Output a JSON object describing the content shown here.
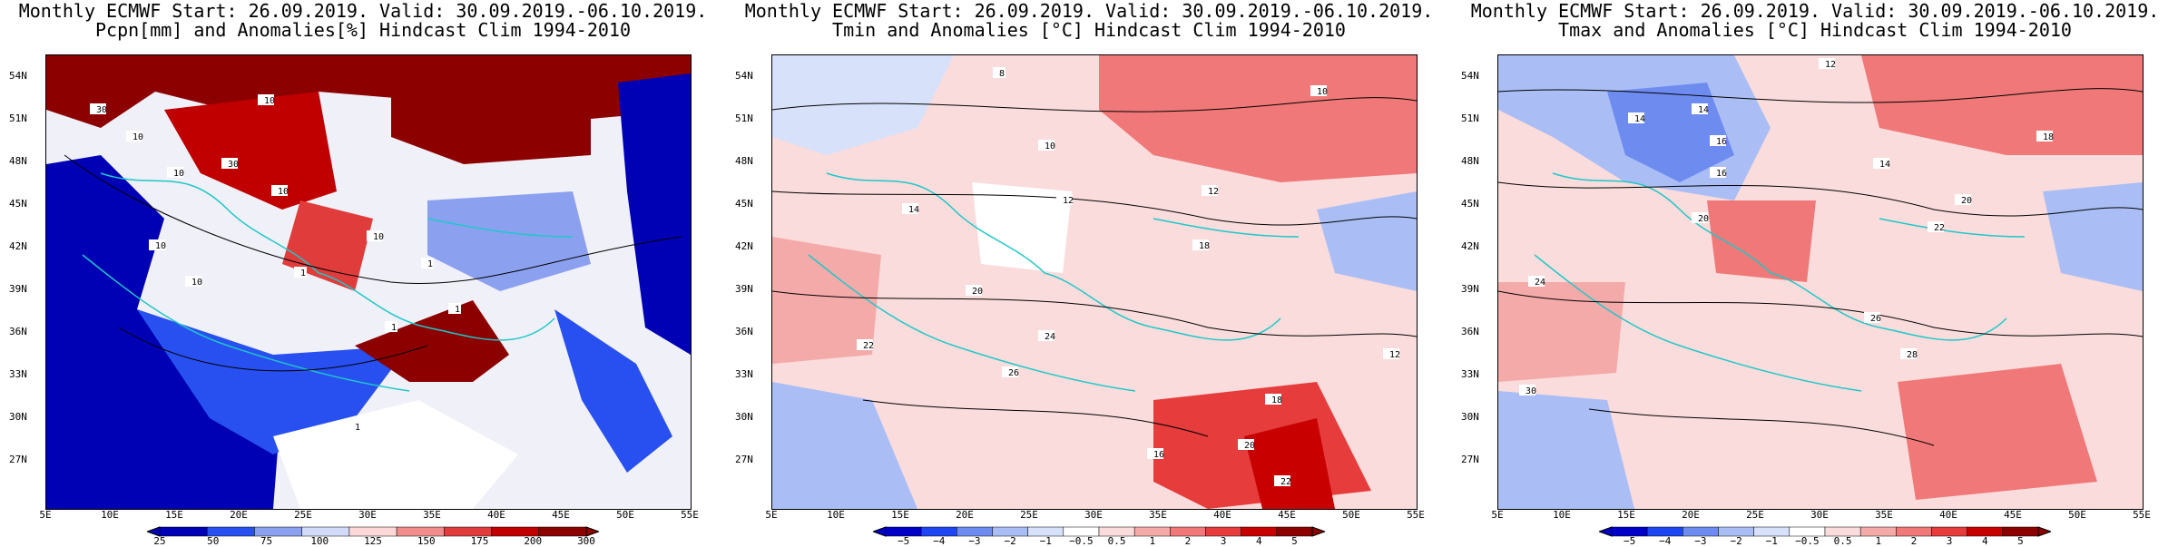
{
  "panels": [
    {
      "title1": "Monthly ECMWF Start: 26.09.2019. Valid: 30.09.2019.-06.10.2019.",
      "title2": "Pcpn[mm] and Anomalies[%] Hindcast Clim 1994-2010",
      "colorbar_labels": [
        "25",
        "50",
        "75",
        "100",
        "125",
        "150",
        "175",
        "200",
        "300"
      ],
      "contour_labels": [
        "30",
        "10",
        "10",
        "10",
        "30",
        "10",
        "10",
        "10",
        "10",
        "1",
        "1",
        "1",
        "1",
        "1"
      ]
    },
    {
      "title1": "Monthly ECMWF Start: 26.09.2019. Valid: 30.09.2019.-06.10.2019.",
      "title2": "Tmin and Anomalies [°C] Hindcast Clim 1994-2010",
      "colorbar_labels": [
        "−5",
        "−4",
        "−3",
        "−2",
        "−1",
        "−0.5",
        "0.5",
        "1",
        "2",
        "3",
        "4",
        "5"
      ],
      "contour_labels": [
        "8",
        "10",
        "10",
        "12",
        "12",
        "14",
        "18",
        "20",
        "22",
        "24",
        "26",
        "16",
        "20",
        "18",
        "12",
        "22"
      ]
    },
    {
      "title1": "Monthly ECMWF Start: 26.09.2019. Valid: 30.09.2019.-06.10.2019.",
      "title2": "Tmax and Anomalies [°C] Hindcast Clim 1994-2010",
      "colorbar_labels": [
        "−5",
        "−4",
        "−3",
        "−2",
        "−1",
        "−0.5",
        "0.5",
        "1",
        "2",
        "3",
        "4",
        "5"
      ],
      "contour_labels": [
        "12",
        "14",
        "14",
        "16",
        "18",
        "20",
        "22",
        "24",
        "26",
        "28",
        "30",
        "16",
        "14",
        "20"
      ]
    }
  ],
  "lat_ticks": [
    "54N",
    "51N",
    "48N",
    "45N",
    "42N",
    "39N",
    "36N",
    "33N",
    "30N",
    "27N"
  ],
  "lon_ticks": [
    "5E",
    "10E",
    "15E",
    "20E",
    "25E",
    "30E",
    "35E",
    "40E",
    "45E",
    "50E",
    "55E"
  ],
  "colors": {
    "pcpn_scale": [
      "#0000b4",
      "#2850f0",
      "#8ca0f0",
      "#d2dcf8",
      "#fcd8d8",
      "#f08c8c",
      "#e03c3c",
      "#c00000",
      "#8c0000"
    ],
    "temp_scale": [
      "#0000c8",
      "#1e46f0",
      "#6e8cf0",
      "#aabef5",
      "#d7e1fa",
      "#ffffff",
      "#fadcdc",
      "#f5aaaa",
      "#f07878",
      "#e63c3c",
      "#c80000",
      "#8c0000"
    ],
    "coast": "#1ec8c8",
    "contour": "#000000"
  }
}
